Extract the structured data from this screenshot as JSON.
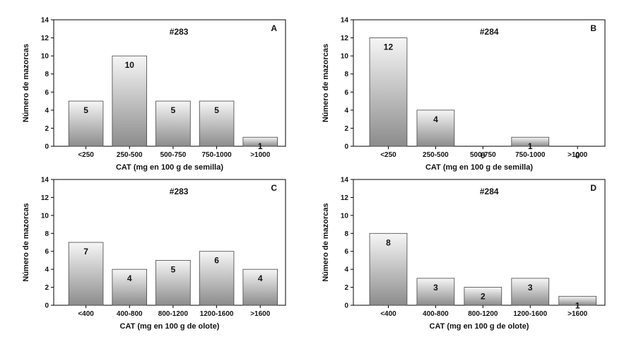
{
  "chart_data": [
    {
      "type": "bar",
      "panel": "A",
      "title": "#283",
      "xlabel": "CAT (mg en 100 g de semilla)",
      "ylabel": "Número de mazorcas",
      "ylim": [
        0,
        14
      ],
      "yticks": [
        0,
        2,
        4,
        6,
        8,
        10,
        12,
        14
      ],
      "categories": [
        "<250",
        "250-500",
        "500-750",
        "750-1000",
        ">1000"
      ],
      "values": [
        5,
        10,
        5,
        5,
        1
      ],
      "labels": [
        "5",
        "10",
        "5",
        "5",
        "1"
      ]
    },
    {
      "type": "bar",
      "panel": "B",
      "title": "#284",
      "xlabel": "CAT (mg en 100 g de semilla)",
      "ylabel": "Número de mazorcas",
      "ylim": [
        0,
        14
      ],
      "yticks": [
        0,
        2,
        4,
        6,
        8,
        10,
        12,
        14
      ],
      "categories": [
        "<250",
        "250-500",
        "500-750",
        "750-1000",
        ">1000"
      ],
      "values": [
        12,
        4,
        0,
        1,
        0
      ],
      "labels": [
        "12",
        "4",
        "0",
        "1",
        "0"
      ]
    },
    {
      "type": "bar",
      "panel": "C",
      "title": "#283",
      "xlabel": "CAT (mg en 100 g de olote)",
      "ylabel": "Número de mazorcas",
      "ylim": [
        0,
        14
      ],
      "yticks": [
        0,
        2,
        4,
        6,
        8,
        10,
        12,
        14
      ],
      "categories": [
        "<400",
        "400-800",
        "800-1200",
        "1200-1600",
        ">1600"
      ],
      "values": [
        7,
        4,
        5,
        6,
        4
      ],
      "labels": [
        "7",
        "4",
        "5",
        "6",
        "4"
      ]
    },
    {
      "type": "bar",
      "panel": "D",
      "title": "#284",
      "xlabel": "CAT (mg en 100 g de olote)",
      "ylabel": "Número de mazorcas",
      "ylim": [
        0,
        14
      ],
      "yticks": [
        0,
        2,
        4,
        6,
        8,
        10,
        12,
        14
      ],
      "categories": [
        "<400",
        "400-800",
        "800-1200",
        "1200-1600",
        ">1600"
      ],
      "values": [
        8,
        3,
        2,
        3,
        1
      ],
      "labels": [
        "8",
        "3",
        "2",
        "3",
        "1"
      ]
    }
  ],
  "colors": {
    "bar_top": "#f6f6f6",
    "bar_bottom": "#8c8c8c",
    "bar_stroke": "#444444",
    "axis": "#000000"
  }
}
